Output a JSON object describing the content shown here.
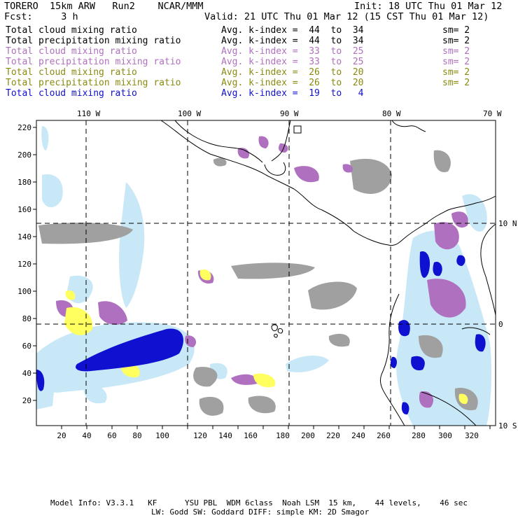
{
  "header": {
    "model": "TORERO  15km ARW   Run2    NCAR/MMM",
    "init": "Init: 18 UTC Thu 01 Mar 12",
    "fcst": "Fcst:     3 h",
    "valid": "Valid: 21 UTC Thu 01 Mar 12 (15 CST Thu 01 Mar 12)"
  },
  "legend": [
    {
      "field": "Total cloud mixing ratio",
      "kindex": "Avg. k-index =  44  to  34",
      "sm": "sm= 2",
      "color": "#000000"
    },
    {
      "field": "Total precipitation mixing ratio",
      "kindex": "Avg. k-index =  44  to  34",
      "sm": "sm= 2",
      "color": "#000000"
    },
    {
      "field": "Total cloud mixing ratio",
      "kindex": "Avg. k-index =  33  to  25",
      "sm": "sm= 2",
      "color": "#b070c0"
    },
    {
      "field": "Total precipitation mixing ratio",
      "kindex": "Avg. k-index =  33  to  25",
      "sm": "sm= 2",
      "color": "#b070c0"
    },
    {
      "field": "Total cloud mixing ratio",
      "kindex": "Avg. k-index =  26  to  20",
      "sm": "sm= 2",
      "color": "#8a8a10"
    },
    {
      "field": "Total precipitation mixing ratio",
      "kindex": "Avg. k-index =  26  to  20",
      "sm": "sm= 2",
      "color": "#8a8a10"
    },
    {
      "field": "Total cloud mixing ratio",
      "kindex": "Avg. k-index =  19  to   4",
      "sm": "",
      "color": "#1010d0"
    }
  ],
  "axes": {
    "top_lon": [
      "110 W",
      "100 W",
      "90 W",
      "80 W",
      "70 W"
    ],
    "right_lat": [
      "10 N",
      "0",
      "10 S"
    ],
    "x_ticks": [
      "20",
      "40",
      "60",
      "80",
      "100",
      "120",
      "140",
      "160",
      "180",
      "200",
      "220",
      "240",
      "260",
      "280",
      "300",
      "320"
    ],
    "y_ticks": [
      "220",
      "200",
      "180",
      "160",
      "140",
      "120",
      "100",
      "80",
      "60",
      "40",
      "20"
    ]
  },
  "footer": {
    "line1": "Model Info: V3.3.1   KF      YSU PBL  WDM 6class  Noah LSM  15 km,    44 levels,    46 sec",
    "line2": "LW: Godd SW: Goddard DIFF: simple KM: 2D Smagor"
  },
  "colors": {
    "gray_cloud": "#a0a0a0",
    "purple_cloud": "#b070c0",
    "yellow_cloud": "#ffff60",
    "light_blue": "#c8e8f8",
    "blue": "#1010d0"
  }
}
